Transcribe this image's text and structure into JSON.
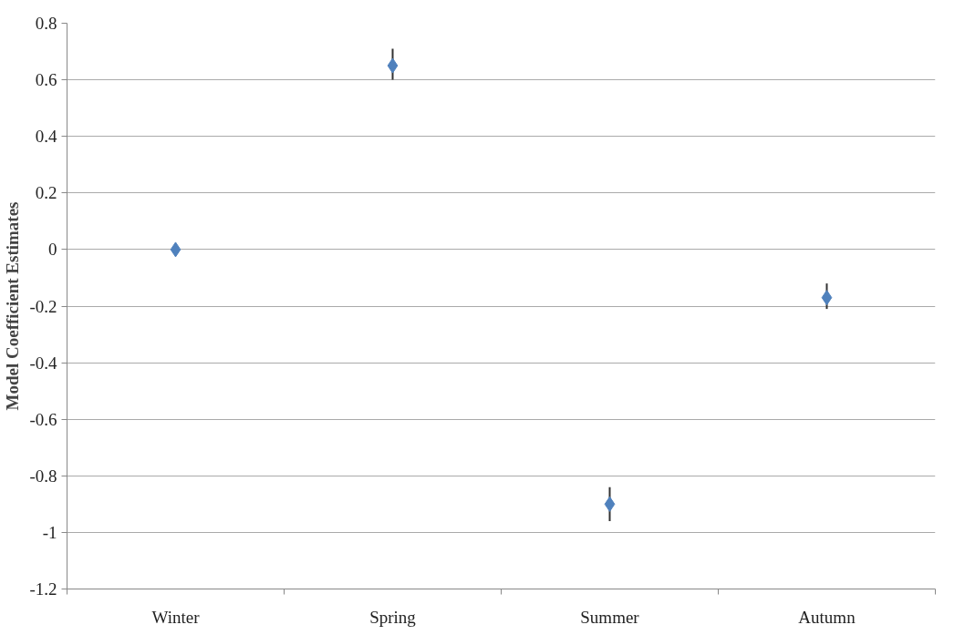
{
  "chart_data": {
    "type": "scatter",
    "ylabel": "Model Coefficient Estimates",
    "categories": [
      "Winter",
      "Spring",
      "Summer",
      "Autumn"
    ],
    "series": [
      {
        "color": "#4f81bd",
        "values": [
          0,
          0.65,
          -0.9,
          -0.17
        ],
        "errors": [
          null,
          [
            0.6,
            0.71
          ],
          [
            -0.96,
            -0.84
          ],
          [
            -0.21,
            -0.12
          ]
        ]
      }
    ],
    "ylim": [
      -1.2,
      0.8
    ],
    "yticks": [
      -1.2,
      -1,
      -0.8,
      -0.6,
      -0.4,
      -0.2,
      0,
      0.2,
      0.4,
      0.6,
      0.8
    ],
    "grid": "y",
    "marker": "diamond"
  }
}
